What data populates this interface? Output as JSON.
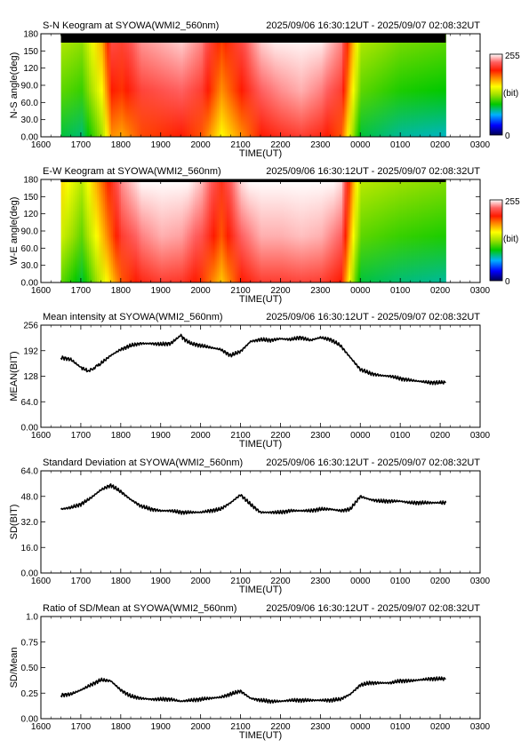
{
  "time_range": "2025/09/06 16:30:12UT - 2025/09/07 02:08:32UT",
  "x_axis": {
    "label": "TIME(UT)",
    "ticks": [
      "1600",
      "1700",
      "1800",
      "1900",
      "2000",
      "2100",
      "2200",
      "2300",
      "0000",
      "0100",
      "0200",
      "0300"
    ],
    "range_hours": [
      16,
      27
    ]
  },
  "colorbar": {
    "max_label": "255",
    "mid_label": "(bit)",
    "min_label": "0"
  },
  "keograms": [
    {
      "id": "sn",
      "title": "S-N Keogram at SYOWA(WMI2_560nm)",
      "ylabel": "N-S angle(deg)",
      "yticks": [
        "0.00",
        "30.0",
        "60.0",
        "90.0",
        "120",
        "150",
        "180"
      ],
      "ylim": [
        0,
        180
      ],
      "data_hours": [
        16.503,
        26.142
      ],
      "intensity_profile": [
        {
          "hour": 16.5,
          "level": 0.45
        },
        {
          "hour": 17.0,
          "level": 0.42
        },
        {
          "hour": 17.5,
          "level": 0.6
        },
        {
          "hour": 17.75,
          "level": 0.8
        },
        {
          "hour": 18.0,
          "level": 0.78
        },
        {
          "hour": 18.5,
          "level": 0.86
        },
        {
          "hour": 19.0,
          "level": 0.88
        },
        {
          "hour": 19.5,
          "level": 0.9
        },
        {
          "hour": 20.0,
          "level": 0.85
        },
        {
          "hour": 20.5,
          "level": 0.7
        },
        {
          "hour": 21.0,
          "level": 0.8
        },
        {
          "hour": 21.5,
          "level": 0.9
        },
        {
          "hour": 22.0,
          "level": 0.93
        },
        {
          "hour": 22.5,
          "level": 0.95
        },
        {
          "hour": 23.0,
          "level": 0.92
        },
        {
          "hour": 23.5,
          "level": 0.85
        },
        {
          "hour": 23.85,
          "level": 0.55
        },
        {
          "hour": 24.0,
          "level": 0.45
        },
        {
          "hour": 25.0,
          "level": 0.4
        },
        {
          "hour": 26.14,
          "level": 0.38
        }
      ]
    },
    {
      "id": "ew",
      "title": "E-W Keogram at SYOWA(WMI2_560nm)",
      "ylabel": "W-E angle(deg)",
      "yticks": [
        "0.00",
        "30.0",
        "60.0",
        "90.0",
        "120",
        "150",
        "180"
      ],
      "ylim": [
        0,
        180
      ],
      "data_hours": [
        16.503,
        26.142
      ],
      "intensity_profile": [
        {
          "hour": 16.5,
          "level": 0.55
        },
        {
          "hour": 17.0,
          "level": 0.45
        },
        {
          "hour": 17.5,
          "level": 0.65
        },
        {
          "hour": 18.0,
          "level": 0.85
        },
        {
          "hour": 18.5,
          "level": 0.92
        },
        {
          "hour": 19.0,
          "level": 0.95
        },
        {
          "hour": 19.5,
          "level": 0.94
        },
        {
          "hour": 20.0,
          "level": 0.88
        },
        {
          "hour": 20.5,
          "level": 0.75
        },
        {
          "hour": 21.0,
          "level": 0.9
        },
        {
          "hour": 21.5,
          "level": 0.95
        },
        {
          "hour": 22.0,
          "level": 0.95
        },
        {
          "hour": 22.5,
          "level": 0.96
        },
        {
          "hour": 23.0,
          "level": 0.95
        },
        {
          "hour": 23.5,
          "level": 0.9
        },
        {
          "hour": 23.85,
          "level": 0.55
        },
        {
          "hour": 24.0,
          "level": 0.45
        },
        {
          "hour": 25.0,
          "level": 0.42
        },
        {
          "hour": 26.14,
          "level": 0.4
        }
      ]
    }
  ],
  "chart_data": [
    {
      "type": "line",
      "title": "Mean intensity at SYOWA(WMI2_560nm)",
      "ylabel": "MEAN(BIT)",
      "xlabel": "TIME(UT)",
      "yticks": [
        "0.00",
        "64.0",
        "128",
        "192",
        "256"
      ],
      "ylim": [
        0,
        256
      ],
      "series": [
        {
          "x": [
            16.5,
            16.75,
            17.0,
            17.2,
            17.5,
            17.75,
            18.0,
            18.25,
            18.5,
            18.75,
            19.0,
            19.25,
            19.5,
            19.6,
            19.75,
            20.0,
            20.25,
            20.5,
            20.75,
            21.0,
            21.25,
            21.5,
            21.75,
            22.0,
            22.25,
            22.5,
            22.75,
            23.0,
            23.25,
            23.5,
            23.75,
            24.0,
            24.25,
            24.5,
            24.75,
            25.0,
            25.25,
            25.5,
            25.75,
            26.0,
            26.14
          ],
          "y": [
            175,
            170,
            150,
            140,
            160,
            180,
            195,
            205,
            210,
            210,
            208,
            210,
            230,
            220,
            210,
            205,
            200,
            195,
            180,
            190,
            215,
            220,
            218,
            222,
            220,
            225,
            218,
            225,
            220,
            205,
            175,
            145,
            135,
            130,
            128,
            122,
            118,
            115,
            112,
            112,
            113
          ]
        }
      ]
    },
    {
      "type": "line",
      "title": "Standard Deviation at SYOWA(WMI2_560nm)",
      "ylabel": "SD(BIT)",
      "xlabel": "TIME(UT)",
      "yticks": [
        "0.00",
        "16.0",
        "32.0",
        "48.0",
        "64.0"
      ],
      "ylim": [
        0,
        64
      ],
      "series": [
        {
          "x": [
            16.5,
            16.75,
            17.0,
            17.25,
            17.5,
            17.75,
            18.0,
            18.25,
            18.5,
            18.75,
            19.0,
            19.25,
            19.5,
            19.75,
            20.0,
            20.25,
            20.5,
            20.75,
            21.0,
            21.25,
            21.5,
            21.75,
            22.0,
            22.25,
            22.5,
            22.75,
            23.0,
            23.25,
            23.5,
            23.75,
            24.0,
            24.25,
            24.5,
            24.75,
            25.0,
            25.25,
            25.5,
            25.75,
            26.0,
            26.14
          ],
          "y": [
            40,
            41,
            43,
            47,
            52,
            55,
            51,
            46,
            42,
            40,
            39,
            39,
            38,
            38,
            38,
            39,
            40,
            44,
            49,
            43,
            38,
            38,
            38,
            39,
            39,
            39,
            40,
            40,
            39,
            40,
            48,
            46,
            45,
            45,
            45,
            44,
            44,
            44,
            44,
            44
          ]
        }
      ]
    },
    {
      "type": "line",
      "title": "Ratio of SD/Mean at SYOWA(WMI2_560nm)",
      "ylabel": "SD/Mean",
      "xlabel": "TIME(UT)",
      "yticks": [
        "0.00",
        "0.25",
        "0.50",
        "0.75",
        "1.0"
      ],
      "ylim": [
        0,
        1.0
      ],
      "series": [
        {
          "x": [
            16.5,
            16.75,
            17.0,
            17.25,
            17.5,
            17.75,
            18.0,
            18.25,
            18.5,
            18.75,
            19.0,
            19.25,
            19.5,
            19.75,
            20.0,
            20.25,
            20.5,
            20.75,
            21.0,
            21.25,
            21.5,
            21.75,
            22.0,
            22.25,
            22.5,
            22.75,
            23.0,
            23.25,
            23.5,
            23.75,
            24.0,
            24.25,
            24.5,
            24.75,
            25.0,
            25.25,
            25.5,
            25.75,
            26.0,
            26.14
          ],
          "y": [
            0.23,
            0.24,
            0.28,
            0.33,
            0.38,
            0.37,
            0.28,
            0.22,
            0.2,
            0.19,
            0.19,
            0.19,
            0.17,
            0.18,
            0.19,
            0.2,
            0.21,
            0.24,
            0.27,
            0.2,
            0.18,
            0.17,
            0.17,
            0.18,
            0.18,
            0.18,
            0.18,
            0.18,
            0.19,
            0.24,
            0.33,
            0.35,
            0.35,
            0.35,
            0.37,
            0.37,
            0.38,
            0.39,
            0.39,
            0.39
          ]
        }
      ]
    }
  ]
}
